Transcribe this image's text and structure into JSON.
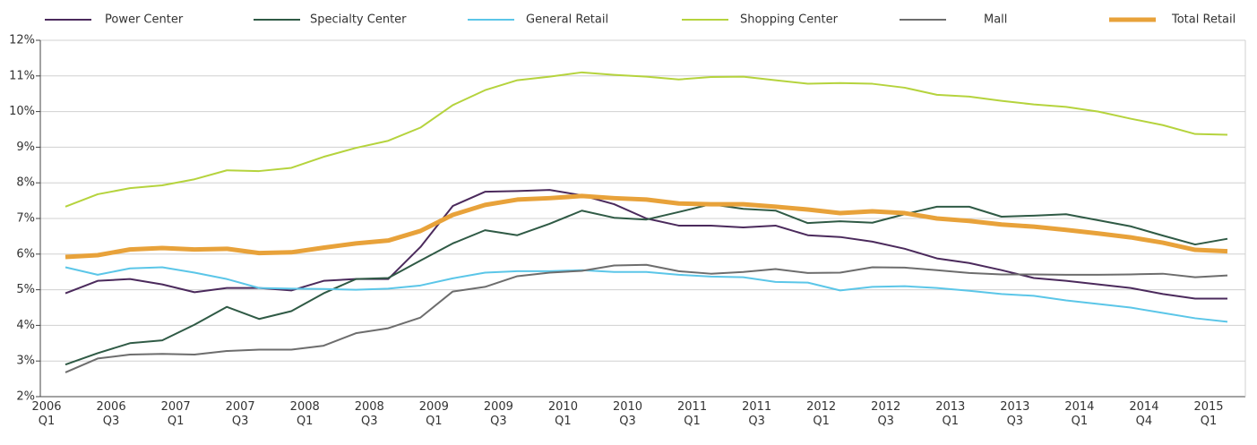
{
  "chart_data": {
    "type": "line",
    "categories": [
      "2006 Q1",
      null,
      "2006 Q3",
      null,
      "2007 Q1",
      null,
      "2007 Q3",
      null,
      "2008 Q1",
      null,
      "2008 Q3",
      null,
      "2009 Q1",
      null,
      "2009 Q3",
      null,
      "2010 Q1",
      null,
      "2010 Q3",
      null,
      "2011 Q1",
      null,
      "2011 Q3",
      null,
      "2012 Q1",
      null,
      "2012 Q3",
      null,
      "2013 Q1",
      null,
      "2013 Q3",
      null,
      "2014 Q1",
      null,
      "2014 Q4",
      null,
      "2015 Q1"
    ],
    "series": [
      {
        "name": "Power Center",
        "color": "#4b2a5c",
        "values": [
          4.9,
          5.25,
          5.3,
          5.15,
          4.93,
          5.05,
          5.05,
          4.98,
          5.25,
          5.3,
          5.3,
          6.2,
          7.35,
          7.75,
          7.77,
          7.8,
          7.65,
          7.4,
          7.0,
          6.8,
          6.8,
          6.75,
          6.8,
          6.53,
          6.48,
          6.35,
          6.15,
          5.88,
          5.75,
          5.55,
          5.33,
          5.25,
          5.15,
          5.05,
          4.88,
          4.75,
          4.75
        ]
      },
      {
        "name": "Specialty Center",
        "color": "#2f5a45",
        "values": [
          2.9,
          3.22,
          3.5,
          3.58,
          4.02,
          4.52,
          4.18,
          4.4,
          4.9,
          5.3,
          5.33,
          5.82,
          6.3,
          6.67,
          6.53,
          6.85,
          7.22,
          7.02,
          6.97,
          7.18,
          7.4,
          7.27,
          7.22,
          6.87,
          6.92,
          6.88,
          7.12,
          7.33,
          7.33,
          7.05,
          7.08,
          7.12,
          6.95,
          6.78,
          6.52,
          6.27,
          6.43
        ]
      },
      {
        "name": "General Retail",
        "color": "#5bc6e8",
        "values": [
          5.63,
          5.42,
          5.6,
          5.63,
          5.48,
          5.3,
          5.05,
          5.03,
          5.02,
          5.0,
          5.03,
          5.12,
          5.32,
          5.48,
          5.52,
          5.52,
          5.55,
          5.5,
          5.5,
          5.42,
          5.37,
          5.35,
          5.22,
          5.2,
          4.98,
          5.08,
          5.1,
          5.05,
          4.97,
          4.88,
          4.83,
          4.7,
          4.6,
          4.5,
          4.35,
          4.2,
          4.1
        ]
      },
      {
        "name": "Shopping Center",
        "color": "#b5d33d",
        "values": [
          7.33,
          7.68,
          7.85,
          7.93,
          8.1,
          8.35,
          8.33,
          8.42,
          8.73,
          8.98,
          9.18,
          9.55,
          10.18,
          10.6,
          10.88,
          10.98,
          11.1,
          11.03,
          10.98,
          10.9,
          10.97,
          10.98,
          10.88,
          10.78,
          10.8,
          10.78,
          10.67,
          10.47,
          10.42,
          10.3,
          10.2,
          10.13,
          10.0,
          9.8,
          9.62,
          9.37,
          9.35
        ]
      },
      {
        "name": "Mall",
        "color": "#6d6d6d",
        "values": [
          2.68,
          3.07,
          3.18,
          3.2,
          3.18,
          3.28,
          3.32,
          3.32,
          3.43,
          3.78,
          3.92,
          4.22,
          4.95,
          5.08,
          5.38,
          5.48,
          5.53,
          5.68,
          5.7,
          5.52,
          5.45,
          5.5,
          5.58,
          5.47,
          5.48,
          5.63,
          5.62,
          5.55,
          5.47,
          5.43,
          5.43,
          5.42,
          5.42,
          5.43,
          5.45,
          5.35,
          5.4
        ]
      },
      {
        "name": "Total Retail",
        "color": "#e8a23a",
        "width": 5,
        "values": [
          5.92,
          5.97,
          6.13,
          6.17,
          6.13,
          6.15,
          6.03,
          6.05,
          6.18,
          6.3,
          6.38,
          6.65,
          7.1,
          7.38,
          7.53,
          7.57,
          7.63,
          7.57,
          7.53,
          7.42,
          7.4,
          7.4,
          7.33,
          7.25,
          7.15,
          7.2,
          7.15,
          7.0,
          6.93,
          6.83,
          6.77,
          6.68,
          6.58,
          6.47,
          6.32,
          6.12,
          6.08
        ]
      }
    ],
    "ylim": [
      2,
      12
    ],
    "yticks": [
      {
        "value": 2,
        "label": "2%"
      },
      {
        "value": 3,
        "label": "3%"
      },
      {
        "value": 4,
        "label": "4%"
      },
      {
        "value": 5,
        "label": "5%"
      },
      {
        "value": 6,
        "label": "6%"
      },
      {
        "value": 7,
        "label": "7%"
      },
      {
        "value": 8,
        "label": "8%"
      },
      {
        "value": 9,
        "label": "9%"
      },
      {
        "value": 10,
        "label": "10%"
      },
      {
        "value": 11,
        "label": "11%"
      },
      {
        "value": 12,
        "label": "12%"
      }
    ],
    "grid": true,
    "legend": "top"
  }
}
